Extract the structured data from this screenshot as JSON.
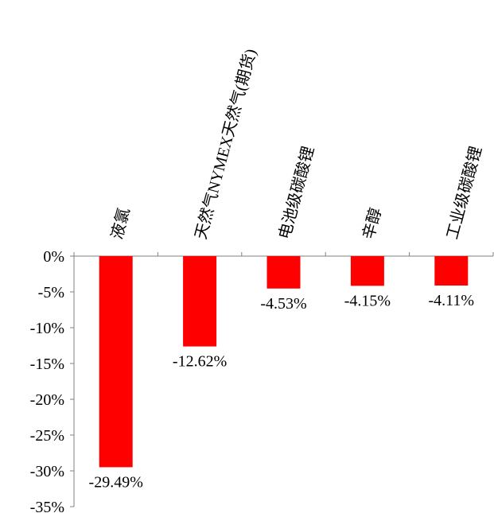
{
  "chart_data": {
    "type": "bar",
    "title": "",
    "xlabel": "",
    "ylabel": "",
    "categories": [
      "液氯",
      "天然气NYMEX天然气(期货)",
      "电池级碳酸锂",
      "辛醇",
      "工业级碳酸锂"
    ],
    "values": [
      -29.49,
      -12.62,
      -4.53,
      -4.15,
      -4.11
    ],
    "data_labels": [
      "-29.49%",
      "-12.62%",
      "-4.53%",
      "-4.15%",
      "-4.11%"
    ],
    "ylim": [
      -35,
      0
    ],
    "y_ticks": [
      0,
      -5,
      -10,
      -15,
      -20,
      -25,
      -30,
      -35
    ],
    "y_tick_labels": [
      "0%",
      "-5%",
      "-10%",
      "-15%",
      "-20%",
      "-25%",
      "-30%",
      "-35%"
    ],
    "bar_color": "#FF0000",
    "axis_color": "#808080",
    "grid": false,
    "legend": "none",
    "x_label_rotation": "vertical-rotated"
  }
}
